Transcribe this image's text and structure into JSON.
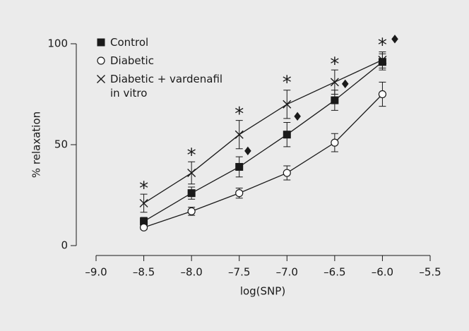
{
  "chart_data": {
    "type": "line",
    "x": [
      -8.5,
      -8.0,
      -7.5,
      -7.0,
      -6.5,
      -6.0
    ],
    "series": [
      {
        "name": "Control",
        "color": "#1a1a1a",
        "marker": "square",
        "values": [
          12,
          26,
          39,
          55,
          72,
          91
        ],
        "errors": [
          2,
          3,
          5,
          6,
          5,
          4
        ]
      },
      {
        "name": "Diabetic",
        "color": "#1a1a1a",
        "marker": "circle",
        "values": [
          9,
          17,
          26,
          36,
          51,
          75
        ],
        "errors": [
          1,
          2,
          2.5,
          3.5,
          4.5,
          6
        ]
      },
      {
        "name": "Diabetic + vardenafil in vitro",
        "color": "#1a1a1a",
        "marker": "cross",
        "values": [
          21,
          36,
          55,
          70,
          81,
          92
        ],
        "errors": [
          4.5,
          5.5,
          7,
          7,
          6,
          4
        ]
      }
    ],
    "annotations": [
      {
        "text": "*",
        "x": -8.5,
        "y": 30
      },
      {
        "text": "*",
        "x": -8.0,
        "y": 46.5
      },
      {
        "text": "*",
        "x": -7.5,
        "y": 67
      },
      {
        "text": "*",
        "x": -7.0,
        "y": 82.5
      },
      {
        "text": "*",
        "x": -6.5,
        "y": 91.6
      },
      {
        "text": "*",
        "x": -6.0,
        "y": 101
      },
      {
        "text": "♦",
        "x": -7.41,
        "y": 46.5
      },
      {
        "text": "♦",
        "x": -6.89,
        "y": 63.6
      },
      {
        "text": "♦",
        "x": -6.39,
        "y": 79.7
      },
      {
        "text": "♦",
        "x": -5.87,
        "y": 102
      }
    ],
    "xlabel": "log(SNP)",
    "ylabel": "% relaxation",
    "xlim": [
      -9.0,
      -5.5
    ],
    "xticks": [
      {
        "value": -9.0,
        "label": "–9.0"
      },
      {
        "value": -8.5,
        "label": "–8.5"
      },
      {
        "value": -8.0,
        "label": "–8.0"
      },
      {
        "value": -7.5,
        "label": "–7.5"
      },
      {
        "value": -7.0,
        "label": "–7.0"
      },
      {
        "value": -6.5,
        "label": "–6.5"
      },
      {
        "value": -6.0,
        "label": "–6.0"
      },
      {
        "value": -5.5,
        "label": "–5.5"
      }
    ],
    "ylim": [
      0,
      100
    ],
    "yticks": [
      0,
      50,
      100
    ],
    "legend": "upper left"
  }
}
